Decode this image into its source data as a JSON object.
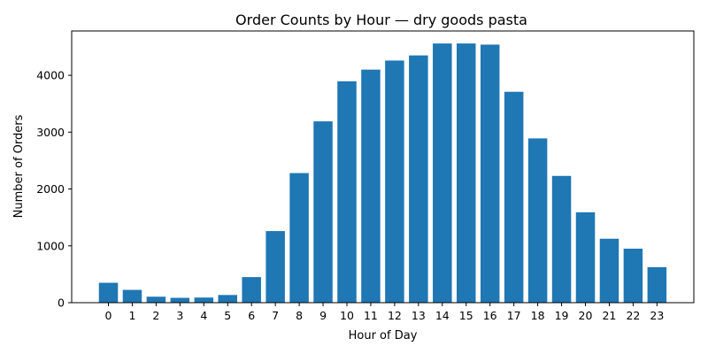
{
  "chart_data": {
    "type": "bar",
    "title": "Order Counts by Hour — dry goods pasta",
    "xlabel": "Hour of Day",
    "ylabel": "Number of Orders",
    "categories": [
      "0",
      "1",
      "2",
      "3",
      "4",
      "5",
      "6",
      "7",
      "8",
      "9",
      "10",
      "11",
      "12",
      "13",
      "14",
      "15",
      "16",
      "17",
      "18",
      "19",
      "20",
      "21",
      "22",
      "23"
    ],
    "values": [
      350,
      225,
      105,
      85,
      90,
      135,
      450,
      1260,
      2280,
      3190,
      3895,
      4100,
      4260,
      4350,
      4560,
      4560,
      4540,
      3710,
      2890,
      2230,
      1590,
      1125,
      950,
      625
    ],
    "ylim": [
      0,
      4780
    ],
    "yticks": [
      0,
      1000,
      2000,
      3000,
      4000
    ],
    "grid": false,
    "bar_color": "#1f77b4"
  }
}
